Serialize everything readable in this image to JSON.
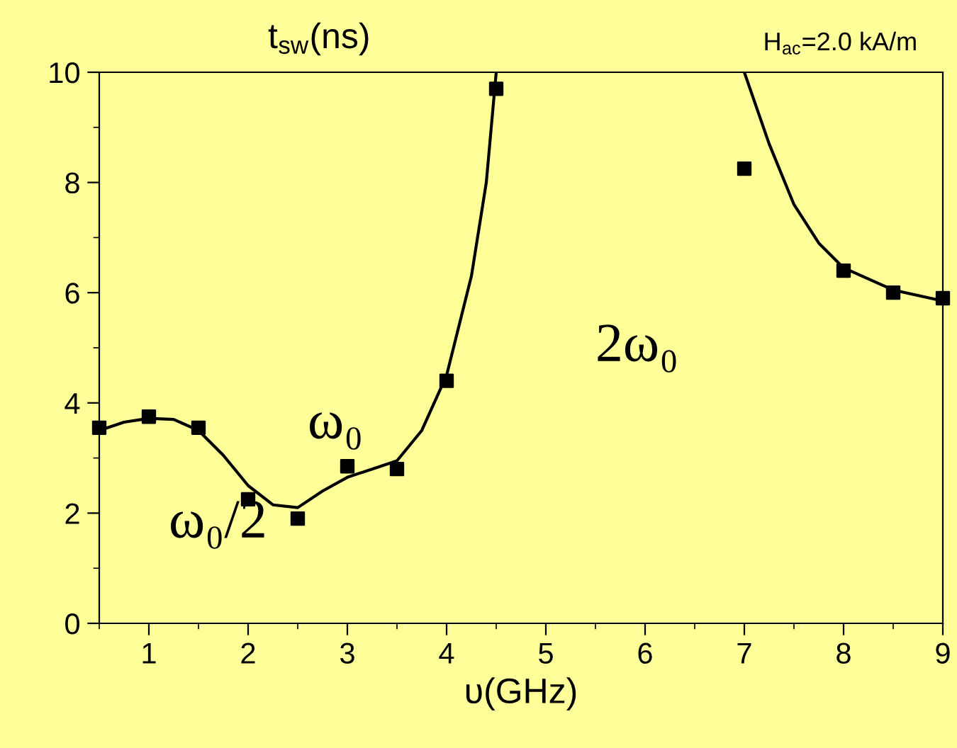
{
  "chart_data": {
    "type": "scatter",
    "ylabel": "t$_{sw}$(ns)",
    "xlabel": "υ(GHz)",
    "annotations": [
      "H$_{ac}$=2.0 kA/m",
      "ω₀/2",
      "ω₀",
      "2ω₀"
    ],
    "xlim": [
      0.5,
      9
    ],
    "xticks": [
      1,
      2,
      3,
      4,
      5,
      6,
      7,
      8,
      9
    ],
    "ylim": [
      0,
      10
    ],
    "yticks": [
      0,
      2,
      4,
      6,
      8,
      10
    ],
    "grid": false,
    "legend": false,
    "series": [
      {
        "marker": "square",
        "color": "#000000",
        "x": [
          0.5,
          1,
          1.5,
          2,
          2.5,
          3,
          3.5,
          4,
          4.5,
          7,
          8,
          8.5,
          9
        ],
        "values": [
          3.55,
          3.75,
          3.55,
          2.25,
          1.9,
          2.85,
          2.8,
          4.4,
          9.7,
          8.25,
          6.4,
          6.0,
          5.9
        ]
      },
      {
        "type": "line",
        "marker": "none",
        "color": "#000000",
        "x": [
          0.5,
          0.75,
          1,
          1.25,
          1.5,
          1.75,
          2,
          2.25,
          2.5,
          2.75,
          3,
          3.25,
          3.5,
          3.75,
          4,
          4.25,
          4.4,
          4.5
        ],
        "values": [
          3.5,
          3.65,
          3.72,
          3.7,
          3.5,
          3.05,
          2.5,
          2.15,
          2.1,
          2.4,
          2.65,
          2.8,
          2.95,
          3.5,
          4.5,
          6.3,
          8,
          10
        ]
      },
      {
        "type": "line",
        "marker": "none",
        "color": "#000000",
        "x": [
          7,
          7.25,
          7.5,
          7.75,
          8,
          8.5,
          9
        ],
        "values": [
          10,
          8.7,
          7.6,
          6.9,
          6.45,
          6.05,
          5.85
        ]
      }
    ]
  }
}
